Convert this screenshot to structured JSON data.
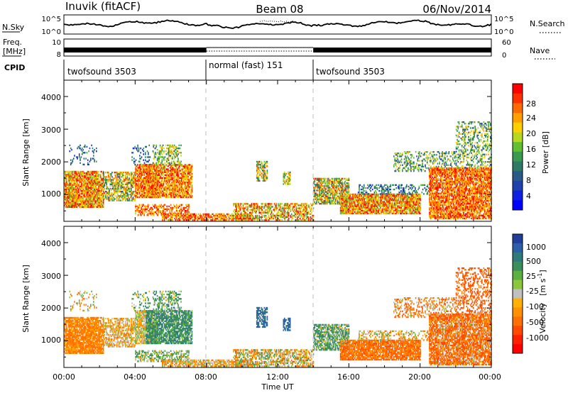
{
  "header": {
    "station": "Inuvik (fitACF)",
    "beam": "Beam 08",
    "date": "06/Nov/2014"
  },
  "strip_labels": {
    "nsky": "N.Sky",
    "nsky_ticks": [
      "10^5",
      "10^0"
    ],
    "nsearch": "N.Search",
    "freq_1": "Freq.",
    "freq_2": "[MHz]",
    "freq_ticks": [
      "10",
      "8"
    ],
    "nave": "Nave",
    "nave_ticks": [
      "60",
      "0"
    ],
    "cpid": "CPID"
  },
  "cpid_segments": [
    {
      "label": "twofsound 3503",
      "start_hour": 0,
      "end_hour": 8
    },
    {
      "label": "normal (fast) 151",
      "start_hour": 8,
      "end_hour": 14
    },
    {
      "label": "twofsound 3503",
      "start_hour": 14,
      "end_hour": 24
    }
  ],
  "colorbars": {
    "power": {
      "label": "Power [dB]",
      "ticks": [
        "28",
        "24",
        "20",
        "16",
        "12",
        "8",
        "4"
      ],
      "colors": [
        "#ff0000",
        "#ff3000",
        "#ff6a00",
        "#ffa000",
        "#ffd000",
        "#b8d820",
        "#60c030",
        "#3a9a50",
        "#2e7a66",
        "#2a5a8a",
        "#2040b0",
        "#1020e0",
        "#0000ff"
      ]
    },
    "velocity": {
      "label_main": "Velocity",
      "label_unit": "[m s",
      "label_sup": "-1",
      "label_close": "]",
      "ticks": [
        "1000",
        "500",
        "25",
        "-25",
        "-100",
        "-500",
        "-1000"
      ],
      "colors": [
        "#1f3f9a",
        "#2d5fa8",
        "#2f7a7a",
        "#3c8f5a",
        "#5cb040",
        "#8cc63c",
        "#c0c0c0",
        "#ffb000",
        "#ff9000",
        "#ff7000",
        "#ff4a00",
        "#ff2000",
        "#ff0000"
      ]
    }
  },
  "panel_axes": {
    "ylabel": "Slant Range [km]",
    "yticks": [
      "4000",
      "3000",
      "2000",
      "1000"
    ],
    "xticks": [
      "00:00",
      "04:00",
      "08:00",
      "12:00",
      "16:00",
      "20:00",
      "00:00"
    ],
    "xlabel": "Time UT"
  },
  "chart_data": {
    "type": "heatmap",
    "title": "Beam 08",
    "xlabel": "Time UT",
    "ylabel": "Slant Range [km]",
    "xlim_hours": [
      0,
      24
    ],
    "ylim_km": [
      180,
      4500
    ],
    "power_db_range": [
      0,
      30
    ],
    "velocity_range": [
      -1000,
      1000
    ],
    "vertical_markers_hours": [
      8,
      14
    ],
    "grid": false,
    "scatter_regions": [
      {
        "t0": 0.0,
        "t1": 2.2,
        "r0": 600,
        "r1": 1700,
        "density": 0.85,
        "power": [
          14,
          30
        ],
        "vel": [
          -180,
          -30
        ]
      },
      {
        "t0": 2.2,
        "t1": 4.0,
        "r0": 800,
        "r1": 1700,
        "density": 0.65,
        "power": [
          8,
          26
        ],
        "vel": [
          -150,
          50
        ]
      },
      {
        "t0": 4.0,
        "t1": 5.2,
        "r0": 900,
        "r1": 1900,
        "density": 0.8,
        "power": [
          18,
          30
        ],
        "vel": [
          -100,
          80
        ]
      },
      {
        "t0": 4.6,
        "t1": 7.2,
        "r0": 900,
        "r1": 1900,
        "density": 0.8,
        "power": [
          16,
          30
        ],
        "vel": [
          20,
          400
        ]
      },
      {
        "t0": 5.0,
        "t1": 6.6,
        "r0": 1900,
        "r1": 2500,
        "density": 0.45,
        "power": [
          8,
          22
        ],
        "vel": [
          -50,
          300
        ]
      },
      {
        "t0": 0.3,
        "t1": 1.8,
        "r0": 1900,
        "r1": 2500,
        "density": 0.15,
        "power": [
          4,
          14
        ],
        "vel": [
          -200,
          100
        ]
      },
      {
        "t0": 3.8,
        "t1": 5.0,
        "r0": 1900,
        "r1": 2500,
        "density": 0.2,
        "power": [
          4,
          14
        ],
        "vel": [
          -50,
          300
        ]
      },
      {
        "t0": 4.0,
        "t1": 7.0,
        "r0": 350,
        "r1": 700,
        "density": 0.5,
        "power": [
          18,
          30
        ],
        "vel": [
          -80,
          200
        ]
      },
      {
        "t0": 5.5,
        "t1": 10.5,
        "r0": 200,
        "r1": 420,
        "density": 0.7,
        "power": [
          18,
          30
        ],
        "vel": [
          -150,
          60
        ]
      },
      {
        "t0": 9.5,
        "t1": 14.0,
        "r0": 200,
        "r1": 700,
        "density": 0.55,
        "power": [
          12,
          30
        ],
        "vel": [
          -200,
          150
        ]
      },
      {
        "t0": 10.8,
        "t1": 11.4,
        "r0": 1400,
        "r1": 2000,
        "density": 0.6,
        "power": [
          8,
          26
        ],
        "vel": [
          300,
          900
        ]
      },
      {
        "t0": 12.3,
        "t1": 12.7,
        "r0": 1300,
        "r1": 1700,
        "density": 0.6,
        "power": [
          8,
          24
        ],
        "vel": [
          300,
          900
        ]
      },
      {
        "t0": 14.0,
        "t1": 16.0,
        "r0": 700,
        "r1": 1500,
        "density": 0.75,
        "power": [
          8,
          28
        ],
        "vel": [
          -50,
          300
        ]
      },
      {
        "t0": 15.5,
        "t1": 20.0,
        "r0": 400,
        "r1": 1000,
        "density": 0.85,
        "power": [
          14,
          30
        ],
        "vel": [
          -300,
          -40
        ]
      },
      {
        "t0": 16.5,
        "t1": 21.0,
        "r0": 1000,
        "r1": 1300,
        "density": 0.35,
        "power": [
          4,
          16
        ],
        "vel": [
          -200,
          100
        ]
      },
      {
        "t0": 18.5,
        "t1": 22.0,
        "r0": 1700,
        "r1": 2300,
        "density": 0.35,
        "power": [
          6,
          20
        ],
        "vel": [
          -300,
          50
        ]
      },
      {
        "t0": 20.5,
        "t1": 24.0,
        "r0": 250,
        "r1": 1800,
        "density": 0.8,
        "power": [
          18,
          30
        ],
        "vel": [
          -400,
          40
        ]
      },
      {
        "t0": 22.0,
        "t1": 24.0,
        "r0": 1800,
        "r1": 3200,
        "density": 0.35,
        "power": [
          6,
          22
        ],
        "vel": [
          -500,
          -60
        ]
      }
    ]
  }
}
